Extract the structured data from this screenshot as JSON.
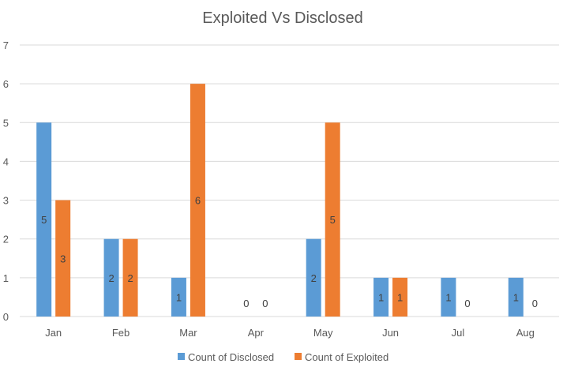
{
  "chart_data": {
    "type": "bar",
    "title": "Exploited Vs Disclosed",
    "categories": [
      "Jan",
      "Feb",
      "Mar",
      "Apr",
      "May",
      "Jun",
      "Jul",
      "Aug"
    ],
    "series": [
      {
        "name": "Count of Disclosed",
        "color": "#5b9bd5",
        "values": [
          5,
          2,
          1,
          0,
          2,
          1,
          1,
          1
        ]
      },
      {
        "name": "Count of Exploited",
        "color": "#ed7d31",
        "values": [
          3,
          2,
          6,
          0,
          5,
          1,
          0,
          0
        ]
      }
    ],
    "ylim": [
      0,
      7
    ],
    "yticks": [
      0,
      1,
      2,
      3,
      4,
      5,
      6,
      7
    ],
    "grid": true,
    "legend": "bottom",
    "xlabel": "",
    "ylabel": ""
  }
}
